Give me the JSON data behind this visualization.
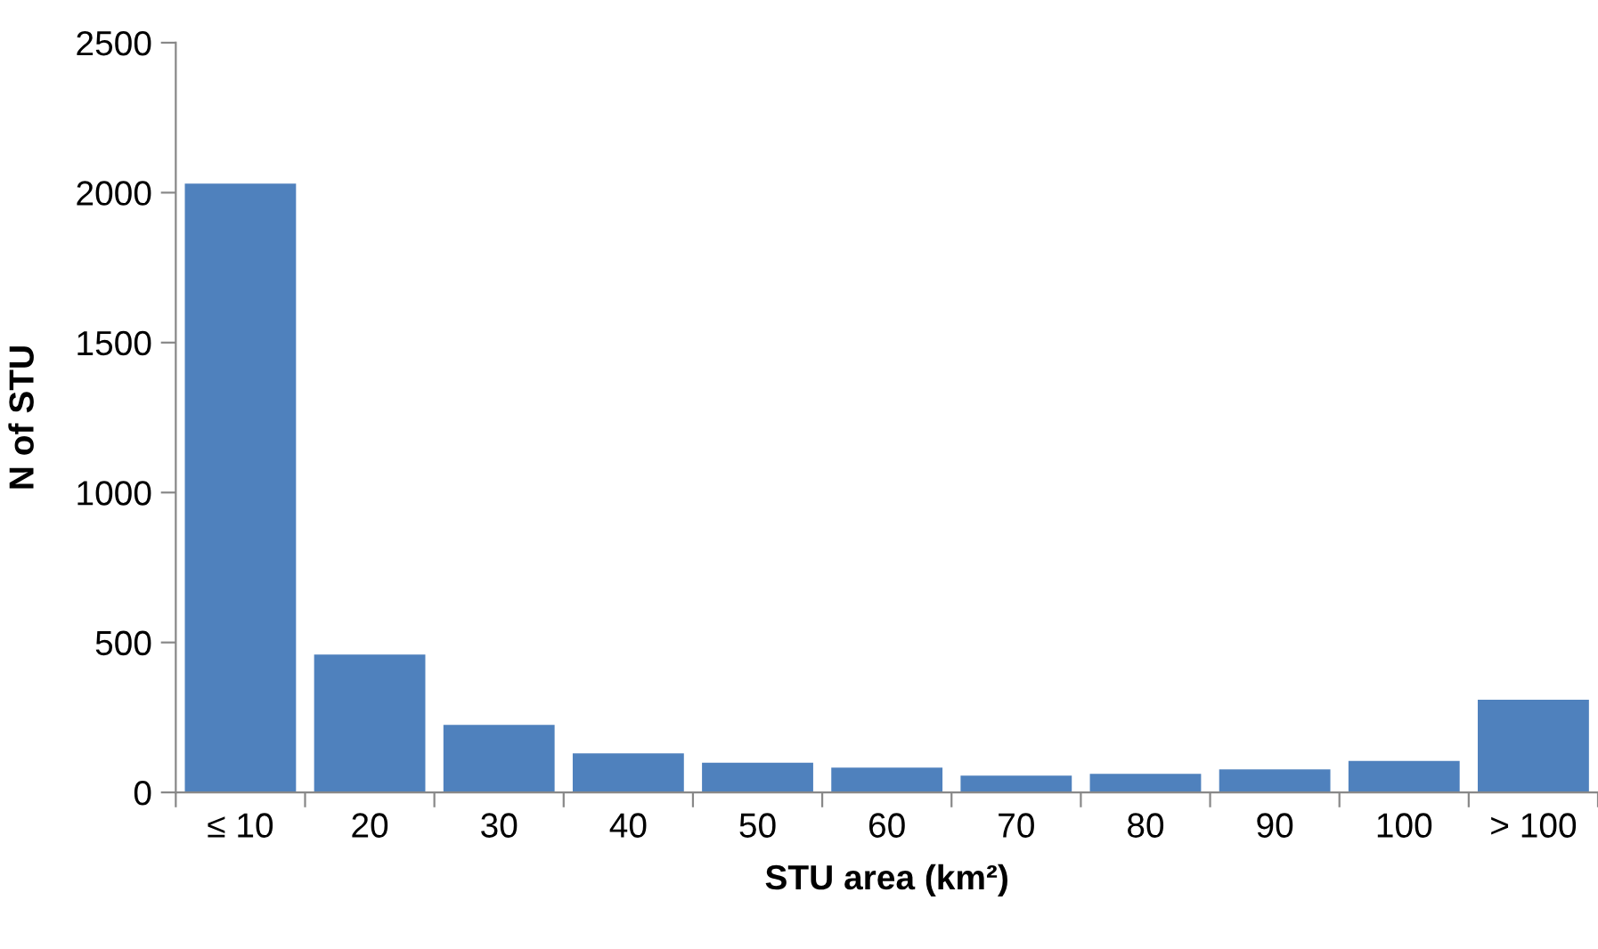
{
  "chart_data": {
    "type": "bar",
    "xlabel": "STU area (km²)",
    "ylabel": "N of STU",
    "categories": [
      "≤ 10",
      "20",
      "30",
      "40",
      "50",
      "60",
      "70",
      "80",
      "90",
      "100",
      "> 100"
    ],
    "values": [
      2030,
      460,
      225,
      130,
      99,
      83,
      56,
      62,
      77,
      105,
      309
    ],
    "color": "#4f81bd",
    "ylim": [
      0,
      2500
    ],
    "yticks": [
      0,
      500,
      1000,
      1500,
      2000,
      2500
    ],
    "grid": false
  }
}
